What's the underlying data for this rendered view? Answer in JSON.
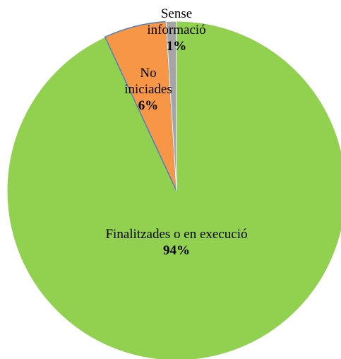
{
  "chart_data": {
    "type": "pie",
    "categories": [
      "Finalitzades o en execució",
      "No iniciades",
      "Sense informació"
    ],
    "values": [
      94,
      6,
      1
    ],
    "value_labels": [
      "94%",
      "6%",
      "1%"
    ],
    "colors": [
      "#92d050",
      "#f79646",
      "#a5a5a5"
    ]
  }
}
